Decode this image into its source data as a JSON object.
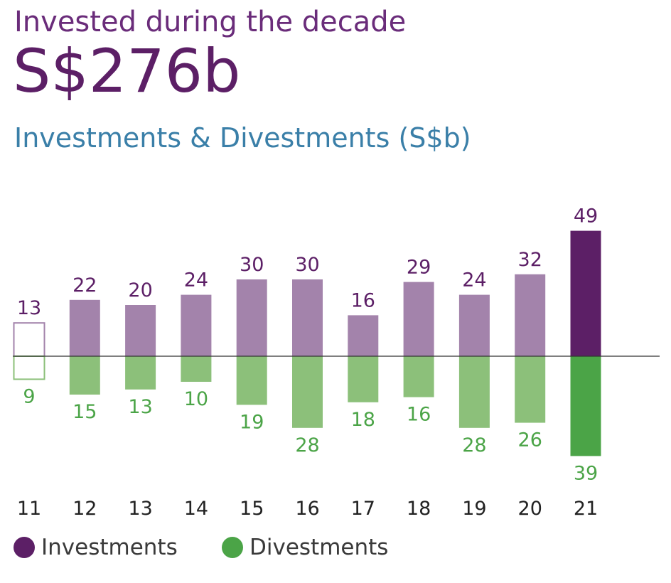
{
  "header": {
    "headline": "Invested during the decade",
    "amount": "S$276b"
  },
  "colors": {
    "investments": "#5c1f66",
    "investments_light": "#a383ab",
    "divestments": "#4ba447",
    "divestments_light": "#8cc07a",
    "axis": "#333333",
    "category_label": "#222222"
  },
  "chart_data": {
    "type": "bar",
    "title": "Investments & Divestments (S$b)",
    "categories": [
      "11",
      "12",
      "13",
      "14",
      "15",
      "16",
      "17",
      "18",
      "19",
      "20",
      "21"
    ],
    "series": [
      {
        "name": "Investments",
        "values": [
          13,
          22,
          20,
          24,
          30,
          30,
          16,
          29,
          24,
          32,
          49
        ],
        "direction": "up"
      },
      {
        "name": "Divestments",
        "values": [
          9,
          15,
          13,
          10,
          19,
          28,
          18,
          16,
          28,
          26,
          39
        ],
        "direction": "down"
      }
    ],
    "bar_styles": [
      "outlined",
      "light",
      "light",
      "light",
      "light",
      "light",
      "light",
      "light",
      "light",
      "light",
      "solid"
    ],
    "grid": false,
    "legend": "bottom-left"
  },
  "legend": {
    "investments_label": "Investments",
    "divestments_label": "Divestments"
  }
}
